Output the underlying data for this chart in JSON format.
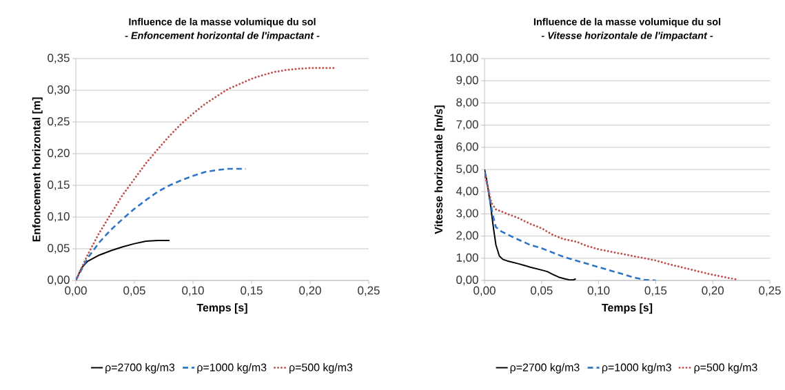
{
  "chart_data": [
    {
      "type": "line",
      "title": "Influence de la masse volumique du sol",
      "subtitle": "- Enfoncement horizontal de l'impactant -",
      "xlabel": "Temps [s]",
      "ylabel": "Enfoncement horizontal [m]",
      "xlim": [
        0,
        0.25
      ],
      "ylim": [
        0,
        0.35
      ],
      "xticks": [
        {
          "value": 0,
          "label": "0,00"
        },
        {
          "value": 0.05,
          "label": "0,05"
        },
        {
          "value": 0.1,
          "label": "0,10"
        },
        {
          "value": 0.15,
          "label": "0,15"
        },
        {
          "value": 0.2,
          "label": "0,20"
        },
        {
          "value": 0.25,
          "label": "0,25"
        }
      ],
      "yticks": [
        {
          "value": 0,
          "label": "0,00"
        },
        {
          "value": 0.05,
          "label": "0,05"
        },
        {
          "value": 0.1,
          "label": "0,10"
        },
        {
          "value": 0.15,
          "label": "0,15"
        },
        {
          "value": 0.2,
          "label": "0,20"
        },
        {
          "value": 0.25,
          "label": "0,25"
        },
        {
          "value": 0.3,
          "label": "0,30"
        },
        {
          "value": 0.35,
          "label": "0,35"
        }
      ],
      "grid": "y",
      "legend": "bottom",
      "marker": "none",
      "series": [
        {
          "name": "ρ=2700 kg/m3",
          "color": "#000000",
          "line_style": "solid",
          "x": [
            0,
            0.005,
            0.01,
            0.02,
            0.03,
            0.04,
            0.05,
            0.06,
            0.07,
            0.08
          ],
          "values": [
            0,
            0.02,
            0.03,
            0.04,
            0.047,
            0.053,
            0.058,
            0.062,
            0.063,
            0.063
          ]
        },
        {
          "name": "ρ=1000 kg/m3",
          "color": "#2e75c6",
          "line_style": "dashed",
          "x": [
            0,
            0.01,
            0.02,
            0.03,
            0.04,
            0.05,
            0.06,
            0.07,
            0.08,
            0.09,
            0.1,
            0.11,
            0.12,
            0.13,
            0.145
          ],
          "values": [
            0,
            0.035,
            0.06,
            0.08,
            0.097,
            0.113,
            0.127,
            0.14,
            0.15,
            0.158,
            0.165,
            0.171,
            0.174,
            0.176,
            0.176
          ]
        },
        {
          "name": "ρ=500 kg/m3",
          "color": "#c0504d",
          "line_style": "dotted",
          "x": [
            0,
            0.01,
            0.02,
            0.03,
            0.04,
            0.05,
            0.06,
            0.07,
            0.08,
            0.09,
            0.1,
            0.11,
            0.12,
            0.13,
            0.14,
            0.15,
            0.16,
            0.17,
            0.18,
            0.19,
            0.2,
            0.222
          ],
          "values": [
            0,
            0.04,
            0.075,
            0.105,
            0.135,
            0.16,
            0.185,
            0.207,
            0.228,
            0.247,
            0.263,
            0.278,
            0.29,
            0.302,
            0.31,
            0.318,
            0.324,
            0.329,
            0.332,
            0.334,
            0.335,
            0.335
          ]
        }
      ]
    },
    {
      "type": "line",
      "title": "Influence de la masse volumique du sol",
      "subtitle": "- Vitesse horizontale de l'impactant -",
      "xlabel": "Temps [s]",
      "ylabel": "Vitesse horizontale [m/s]",
      "xlim": [
        0,
        0.25
      ],
      "ylim": [
        0,
        10
      ],
      "xticks": [
        {
          "value": 0,
          "label": "0,00"
        },
        {
          "value": 0.05,
          "label": "0,05"
        },
        {
          "value": 0.1,
          "label": "0,10"
        },
        {
          "value": 0.15,
          "label": "0,15"
        },
        {
          "value": 0.2,
          "label": "0,20"
        },
        {
          "value": 0.25,
          "label": "0,25"
        }
      ],
      "yticks": [
        {
          "value": 0,
          "label": "0,00"
        },
        {
          "value": 1,
          "label": "1,00"
        },
        {
          "value": 2,
          "label": "2,00"
        },
        {
          "value": 3,
          "label": "3,00"
        },
        {
          "value": 4,
          "label": "4,00"
        },
        {
          "value": 5,
          "label": "5,00"
        },
        {
          "value": 6,
          "label": "6,00"
        },
        {
          "value": 7,
          "label": "7,00"
        },
        {
          "value": 8,
          "label": "8,00"
        },
        {
          "value": 9,
          "label": "9,00"
        },
        {
          "value": 10,
          "label": "10,00"
        }
      ],
      "grid": "y",
      "legend": "bottom",
      "marker": "none",
      "series": [
        {
          "name": "ρ=2700 kg/m3",
          "color": "#000000",
          "line_style": "solid",
          "x": [
            0,
            0.002,
            0.005,
            0.008,
            0.01,
            0.013,
            0.016,
            0.02,
            0.03,
            0.04,
            0.05,
            0.055,
            0.06,
            0.065,
            0.07,
            0.075,
            0.078,
            0.08
          ],
          "values": [
            5,
            4.5,
            3.5,
            2.3,
            1.6,
            1.1,
            0.95,
            0.88,
            0.75,
            0.6,
            0.47,
            0.4,
            0.27,
            0.15,
            0.08,
            0.02,
            0.03,
            0.07
          ]
        },
        {
          "name": "ρ=1000 kg/m3",
          "color": "#2e75c6",
          "line_style": "dashed",
          "x": [
            0,
            0.003,
            0.007,
            0.01,
            0.015,
            0.025,
            0.04,
            0.05,
            0.06,
            0.07,
            0.08,
            0.09,
            0.1,
            0.11,
            0.12,
            0.13,
            0.14,
            0.15
          ],
          "values": [
            4.9,
            4.2,
            3.0,
            2.4,
            2.2,
            1.95,
            1.6,
            1.45,
            1.25,
            1.05,
            0.9,
            0.75,
            0.6,
            0.45,
            0.3,
            0.15,
            0.03,
            0
          ]
        },
        {
          "name": "ρ=500 kg/m3",
          "color": "#c0504d",
          "line_style": "dotted",
          "x": [
            0,
            0.003,
            0.006,
            0.01,
            0.02,
            0.03,
            0.04,
            0.05,
            0.06,
            0.07,
            0.08,
            0.09,
            0.1,
            0.12,
            0.14,
            0.15,
            0.16,
            0.18,
            0.2,
            0.222
          ],
          "values": [
            4.8,
            4.2,
            3.5,
            3.2,
            3.0,
            2.8,
            2.55,
            2.35,
            2.05,
            1.85,
            1.75,
            1.55,
            1.4,
            1.2,
            1.0,
            0.9,
            0.75,
            0.5,
            0.25,
            0.03
          ]
        }
      ]
    }
  ]
}
